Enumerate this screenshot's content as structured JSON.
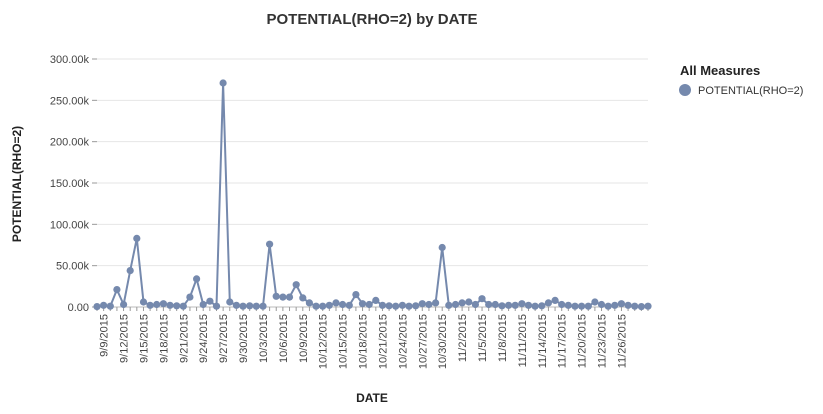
{
  "chart_data": {
    "type": "line",
    "title": "POTENTIAL(RHO=2) by DATE",
    "xlabel": "DATE",
    "ylabel": "POTENTIAL(RHO=2)",
    "ylim": [
      0,
      300000
    ],
    "y_ticks": [
      "0.00",
      "50.00k",
      "100.00k",
      "150.00k",
      "200.00k",
      "250.00k",
      "300.00k"
    ],
    "x_tick_labels": [
      "9/9/2015",
      "9/12/2015",
      "9/15/2015",
      "9/18/2015",
      "9/21/2015",
      "9/24/2015",
      "9/27/2015",
      "9/30/2015",
      "10/3/2015",
      "10/6/2015",
      "10/9/2015",
      "10/12/2015",
      "10/15/2015",
      "10/18/2015",
      "10/21/2015",
      "10/24/2015",
      "10/27/2015",
      "10/30/2015",
      "11/2/2015",
      "11/5/2015",
      "11/8/2015",
      "11/11/2015",
      "11/14/2015",
      "11/17/2015",
      "11/20/2015",
      "11/23/2015",
      "11/26/2015"
    ],
    "grid": true,
    "legend": {
      "title": "All Measures",
      "position": "right"
    },
    "series": [
      {
        "name": "POTENTIAL(RHO=2)",
        "color": "#7589ad",
        "x": [
          "9/8/2015",
          "9/9/2015",
          "9/10/2015",
          "9/11/2015",
          "9/12/2015",
          "9/13/2015",
          "9/14/2015",
          "9/15/2015",
          "9/16/2015",
          "9/17/2015",
          "9/18/2015",
          "9/19/2015",
          "9/20/2015",
          "9/21/2015",
          "9/22/2015",
          "9/23/2015",
          "9/24/2015",
          "9/25/2015",
          "9/26/2015",
          "9/27/2015",
          "9/28/2015",
          "9/29/2015",
          "9/30/2015",
          "10/1/2015",
          "10/2/2015",
          "10/3/2015",
          "10/4/2015",
          "10/5/2015",
          "10/6/2015",
          "10/7/2015",
          "10/8/2015",
          "10/9/2015",
          "10/10/2015",
          "10/11/2015",
          "10/12/2015",
          "10/13/2015",
          "10/14/2015",
          "10/15/2015",
          "10/16/2015",
          "10/17/2015",
          "10/18/2015",
          "10/19/2015",
          "10/20/2015",
          "10/21/2015",
          "10/22/2015",
          "10/23/2015",
          "10/24/2015",
          "10/25/2015",
          "10/26/2015",
          "10/27/2015",
          "10/28/2015",
          "10/29/2015",
          "10/30/2015",
          "10/31/2015",
          "11/1/2015",
          "11/2/2015",
          "11/3/2015",
          "11/4/2015",
          "11/5/2015",
          "11/6/2015",
          "11/7/2015",
          "11/8/2015",
          "11/9/2015",
          "11/10/2015",
          "11/11/2015",
          "11/12/2015",
          "11/13/2015",
          "11/14/2015",
          "11/15/2015",
          "11/16/2015",
          "11/17/2015",
          "11/18/2015",
          "11/19/2015",
          "11/20/2015",
          "11/21/2015",
          "11/22/2015",
          "11/23/2015",
          "11/24/2015",
          "11/25/2015",
          "11/26/2015",
          "11/27/2015",
          "11/28/2015",
          "11/29/2015",
          "11/30/2015"
        ],
        "values": [
          500,
          2000,
          1000,
          21000,
          3000,
          44000,
          83000,
          6000,
          2000,
          3000,
          4000,
          2000,
          1500,
          1000,
          12000,
          34000,
          3000,
          7000,
          1000,
          271000,
          6000,
          2000,
          1000,
          1500,
          1000,
          1000,
          76000,
          13000,
          12000,
          12000,
          27000,
          11000,
          5000,
          1000,
          1000,
          2000,
          5000,
          3000,
          2000,
          15000,
          4000,
          3000,
          8000,
          2000,
          1500,
          1000,
          2000,
          1000,
          1500,
          4000,
          3000,
          5000,
          72000,
          2000,
          3000,
          5000,
          6000,
          3000,
          10000,
          3000,
          3000,
          1500,
          2000,
          2000,
          4000,
          2000,
          1000,
          1500,
          5000,
          8000,
          3000,
          2000,
          1000,
          1000,
          1000,
          6000,
          3000,
          1000,
          2000,
          4000,
          2000,
          1000,
          500,
          1000
        ]
      }
    ]
  }
}
